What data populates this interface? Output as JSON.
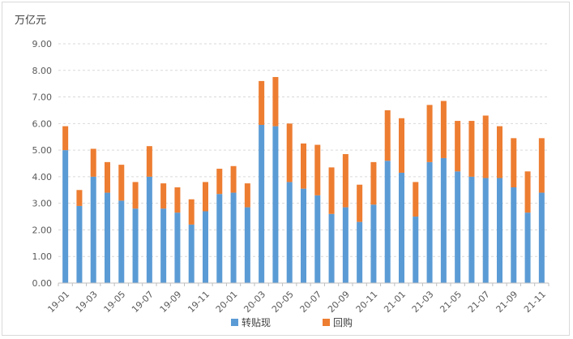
{
  "chart_data": {
    "type": "bar",
    "stacked": true,
    "unit_label": "万亿元",
    "ylim": [
      0,
      9
    ],
    "ytick_step": 1,
    "ytick_labels": [
      "0.00",
      "1.00",
      "2.00",
      "3.00",
      "4.00",
      "5.00",
      "6.00",
      "7.00",
      "8.00",
      "9.00"
    ],
    "grid": true,
    "legend_position": "bottom",
    "categories": [
      "19-01",
      "19-02",
      "19-03",
      "19-04",
      "19-05",
      "19-06",
      "19-07",
      "19-08",
      "19-09",
      "19-10",
      "19-11",
      "19-12",
      "20-01",
      "20-02",
      "20-03",
      "20-04",
      "20-05",
      "20-06",
      "20-07",
      "20-08",
      "20-09",
      "20-10",
      "20-11",
      "20-12",
      "21-01",
      "21-02",
      "21-03",
      "21-04",
      "21-05",
      "21-06",
      "21-07",
      "21-08",
      "21-09",
      "21-10",
      "21-11"
    ],
    "xtick_labels": [
      "19-01",
      "19-03",
      "19-05",
      "19-07",
      "19-09",
      "19-11",
      "20-01",
      "20-03",
      "20-05",
      "20-07",
      "20-09",
      "20-11",
      "21-01",
      "21-03",
      "21-05",
      "21-07",
      "21-09",
      "21-11"
    ],
    "series": [
      {
        "name": "转贴现",
        "color": "#5b9bd5",
        "values": [
          5.0,
          2.9,
          4.0,
          3.4,
          3.1,
          2.8,
          4.0,
          2.8,
          2.65,
          2.2,
          2.7,
          3.35,
          3.4,
          2.85,
          5.95,
          5.9,
          3.8,
          3.55,
          3.3,
          2.6,
          2.85,
          2.3,
          2.95,
          4.6,
          4.15,
          2.5,
          4.55,
          4.7,
          4.2,
          4.0,
          3.95,
          3.95,
          3.6,
          2.65,
          3.4
        ]
      },
      {
        "name": "回购",
        "color": "#ed7d31",
        "values": [
          0.9,
          0.6,
          1.05,
          1.15,
          1.35,
          1.0,
          1.15,
          0.95,
          0.95,
          0.95,
          1.1,
          0.95,
          1.0,
          0.9,
          1.65,
          1.85,
          2.2,
          1.7,
          1.9,
          1.75,
          2.0,
          1.4,
          1.6,
          1.9,
          2.05,
          1.3,
          2.15,
          2.15,
          1.9,
          2.1,
          2.35,
          1.95,
          1.85,
          1.55,
          2.05
        ]
      }
    ]
  }
}
